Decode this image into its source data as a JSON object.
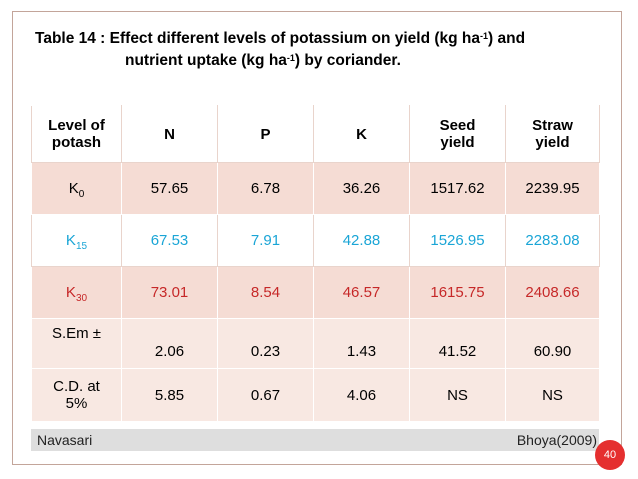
{
  "title": {
    "line1_pre": "Table 14 : Effect different levels of potassium on yield (kg ha",
    "line1_sup": "-1",
    "line1_post": ") and",
    "line2_pre": "nutrient uptake (kg ha",
    "line2_sup": "-1",
    "line2_post": ") by  coriander."
  },
  "table": {
    "headers": [
      {
        "line1": "Level of",
        "line2": "potash"
      },
      {
        "line1": "N",
        "line2": ""
      },
      {
        "line1": "P",
        "line2": ""
      },
      {
        "line1": "K",
        "line2": ""
      },
      {
        "line1": "Seed",
        "line2": "yield"
      },
      {
        "line1": "Straw",
        "line2": "yield"
      }
    ],
    "rows": [
      {
        "label": "K",
        "sub": "0",
        "values": [
          "57.65",
          "6.78",
          "36.26",
          "1517.62",
          "2239.95"
        ]
      },
      {
        "label": "K",
        "sub": "15",
        "values": [
          "67.53",
          "7.91",
          "42.88",
          "1526.95",
          "2283.08"
        ]
      },
      {
        "label": "K",
        "sub": "30",
        "values": [
          "73.01",
          "8.54",
          "46.57",
          "1615.75",
          "2408.66"
        ]
      },
      {
        "label": "S.Em ±",
        "values": [
          "2.06",
          "0.23",
          "1.43",
          "41.52",
          "60.90"
        ]
      },
      {
        "label_line1": "C.D. at",
        "label_line2": "5%",
        "values": [
          "5.85",
          "0.67",
          "4.06",
          "NS",
          "NS"
        ]
      }
    ]
  },
  "footer": {
    "location": "Navasari",
    "citation": "Bhoya(2009)"
  },
  "page_number": "40",
  "colors": {
    "k15_text": "#1aa5d6",
    "k30_text": "#c62828",
    "row_fill": "#f5dcd4",
    "badge": "#e52f2f"
  }
}
